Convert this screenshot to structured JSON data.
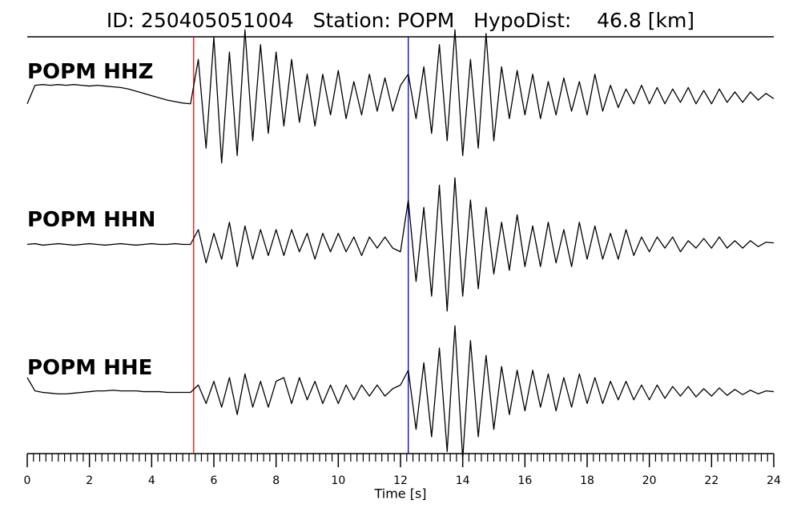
{
  "chart_data": {
    "type": "line",
    "title": "ID: 250405051004   Station: POPM   HypoDist:    46.8 [km]",
    "xlabel": "Time [s]",
    "xlim": [
      0,
      24
    ],
    "xticks": [
      0,
      2,
      4,
      6,
      8,
      10,
      12,
      14,
      16,
      18,
      20,
      22,
      24
    ],
    "ylim": [
      -1,
      1
    ],
    "label_color": "#4c9a00",
    "markers": [
      {
        "x": 5.35,
        "color": "#ff0000"
      },
      {
        "x": 12.25,
        "color": "#0000cc"
      }
    ],
    "x": [
      0,
      0.25,
      0.5,
      0.75,
      1,
      1.25,
      1.5,
      1.75,
      2,
      2.25,
      2.5,
      2.75,
      3,
      3.25,
      3.5,
      3.75,
      4,
      4.25,
      4.5,
      4.75,
      5,
      5.25,
      5.5,
      5.75,
      6,
      6.25,
      6.5,
      6.75,
      7,
      7.25,
      7.5,
      7.75,
      8,
      8.25,
      8.5,
      8.75,
      9,
      9.25,
      9.5,
      9.75,
      10,
      10.25,
      10.5,
      10.75,
      11,
      11.25,
      11.5,
      11.75,
      12,
      12.25,
      12.5,
      12.75,
      13,
      13.25,
      13.5,
      13.75,
      14,
      14.25,
      14.5,
      14.75,
      15,
      15.25,
      15.5,
      15.75,
      16,
      16.25,
      16.5,
      16.75,
      17,
      17.25,
      17.5,
      17.75,
      18,
      18.25,
      18.5,
      18.75,
      19,
      19.25,
      19.5,
      19.75,
      20,
      20.25,
      20.5,
      20.75,
      21,
      21.25,
      21.5,
      21.75,
      22,
      22.25,
      22.5,
      22.75,
      23,
      23.25,
      23.5,
      23.75,
      24
    ],
    "series": [
      {
        "name": "POPM HHZ",
        "color": "#000000",
        "values": [
          -0.1,
          0.15,
          0.16,
          0.15,
          0.16,
          0.15,
          0.16,
          0.15,
          0.14,
          0.15,
          0.14,
          0.13,
          0.12,
          0.1,
          0.07,
          0.04,
          0.01,
          -0.02,
          -0.05,
          -0.07,
          -0.09,
          -0.1,
          0.5,
          -0.7,
          0.8,
          -0.9,
          0.6,
          -0.8,
          0.9,
          -0.6,
          0.7,
          -0.5,
          0.6,
          -0.4,
          0.5,
          -0.35,
          0.3,
          -0.4,
          0.3,
          -0.25,
          0.35,
          -0.3,
          0.2,
          -0.25,
          0.3,
          -0.2,
          0.25,
          -0.2,
          0.15,
          0.3,
          -0.3,
          0.4,
          -0.5,
          0.7,
          -0.6,
          0.9,
          -0.8,
          0.5,
          -0.7,
          0.85,
          -0.6,
          0.4,
          -0.3,
          0.35,
          -0.25,
          0.3,
          -0.3,
          0.2,
          -0.25,
          0.25,
          -0.2,
          0.2,
          -0.25,
          0.3,
          -0.2,
          0.15,
          -0.15,
          0.1,
          -0.1,
          0.15,
          -0.1,
          0.12,
          -0.1,
          0.1,
          -0.08,
          0.12,
          -0.1,
          0.08,
          -0.1,
          0.1,
          -0.08,
          0.06,
          -0.08,
          0.06,
          -0.05,
          0.04,
          -0.03
        ]
      },
      {
        "name": "POPM HHN",
        "color": "#000000",
        "values": [
          0,
          0.01,
          -0.01,
          0,
          0.01,
          0,
          -0.01,
          0,
          0.01,
          0,
          -0.01,
          0,
          0.01,
          0,
          -0.01,
          0,
          0.01,
          0,
          0,
          0.01,
          0,
          0,
          0.2,
          -0.25,
          0.15,
          -0.2,
          0.3,
          -0.3,
          0.25,
          -0.2,
          0.2,
          -0.15,
          0.2,
          -0.15,
          0.2,
          -0.1,
          0.15,
          -0.2,
          0.15,
          -0.1,
          0.15,
          -0.1,
          0.1,
          -0.15,
          0.1,
          -0.05,
          0.1,
          -0.05,
          -0.1,
          0.6,
          -0.5,
          0.5,
          -0.7,
          0.8,
          -0.9,
          0.9,
          -0.7,
          0.6,
          -0.6,
          0.5,
          -0.4,
          0.3,
          -0.35,
          0.4,
          -0.3,
          0.25,
          -0.3,
          0.3,
          -0.25,
          0.2,
          -0.3,
          0.3,
          -0.2,
          0.25,
          -0.2,
          0.15,
          -0.2,
          0.2,
          -0.15,
          0.1,
          -0.1,
          0.1,
          -0.05,
          0.1,
          -0.1,
          0.05,
          -0.05,
          0.08,
          -0.05,
          0.1,
          -0.05,
          0.05,
          -0.05,
          0.05,
          -0.03,
          0.03,
          0.02
        ]
      },
      {
        "name": "POPM HHE",
        "color": "#000000",
        "values": [
          0.2,
          0.02,
          0,
          -0.01,
          -0.02,
          -0.02,
          -0.01,
          0,
          0.01,
          0.02,
          0.02,
          0.03,
          0.02,
          0.02,
          0.02,
          0.01,
          0.01,
          0.01,
          0,
          0,
          0,
          0,
          0.1,
          -0.15,
          0.15,
          -0.2,
          0.2,
          -0.3,
          0.25,
          -0.2,
          0.15,
          -0.2,
          0.15,
          0.2,
          -0.15,
          0.2,
          -0.1,
          0.15,
          -0.15,
          0.1,
          -0.15,
          0.1,
          -0.1,
          0.1,
          -0.05,
          0.1,
          -0.05,
          0.05,
          0.1,
          0.3,
          -0.5,
          0.4,
          -0.6,
          0.6,
          -0.8,
          0.9,
          -0.9,
          0.7,
          -0.6,
          0.5,
          -0.5,
          0.35,
          -0.3,
          0.3,
          -0.25,
          0.3,
          -0.2,
          0.25,
          -0.25,
          0.2,
          -0.2,
          0.25,
          -0.15,
          0.2,
          -0.15,
          0.15,
          -0.1,
          0.15,
          -0.1,
          0.1,
          -0.1,
          0.1,
          -0.08,
          0.08,
          -0.05,
          0.08,
          -0.06,
          0.05,
          -0.05,
          0.06,
          -0.04,
          0.04,
          -0.03,
          0.03,
          -0.02,
          0.02,
          0.01
        ]
      }
    ]
  }
}
